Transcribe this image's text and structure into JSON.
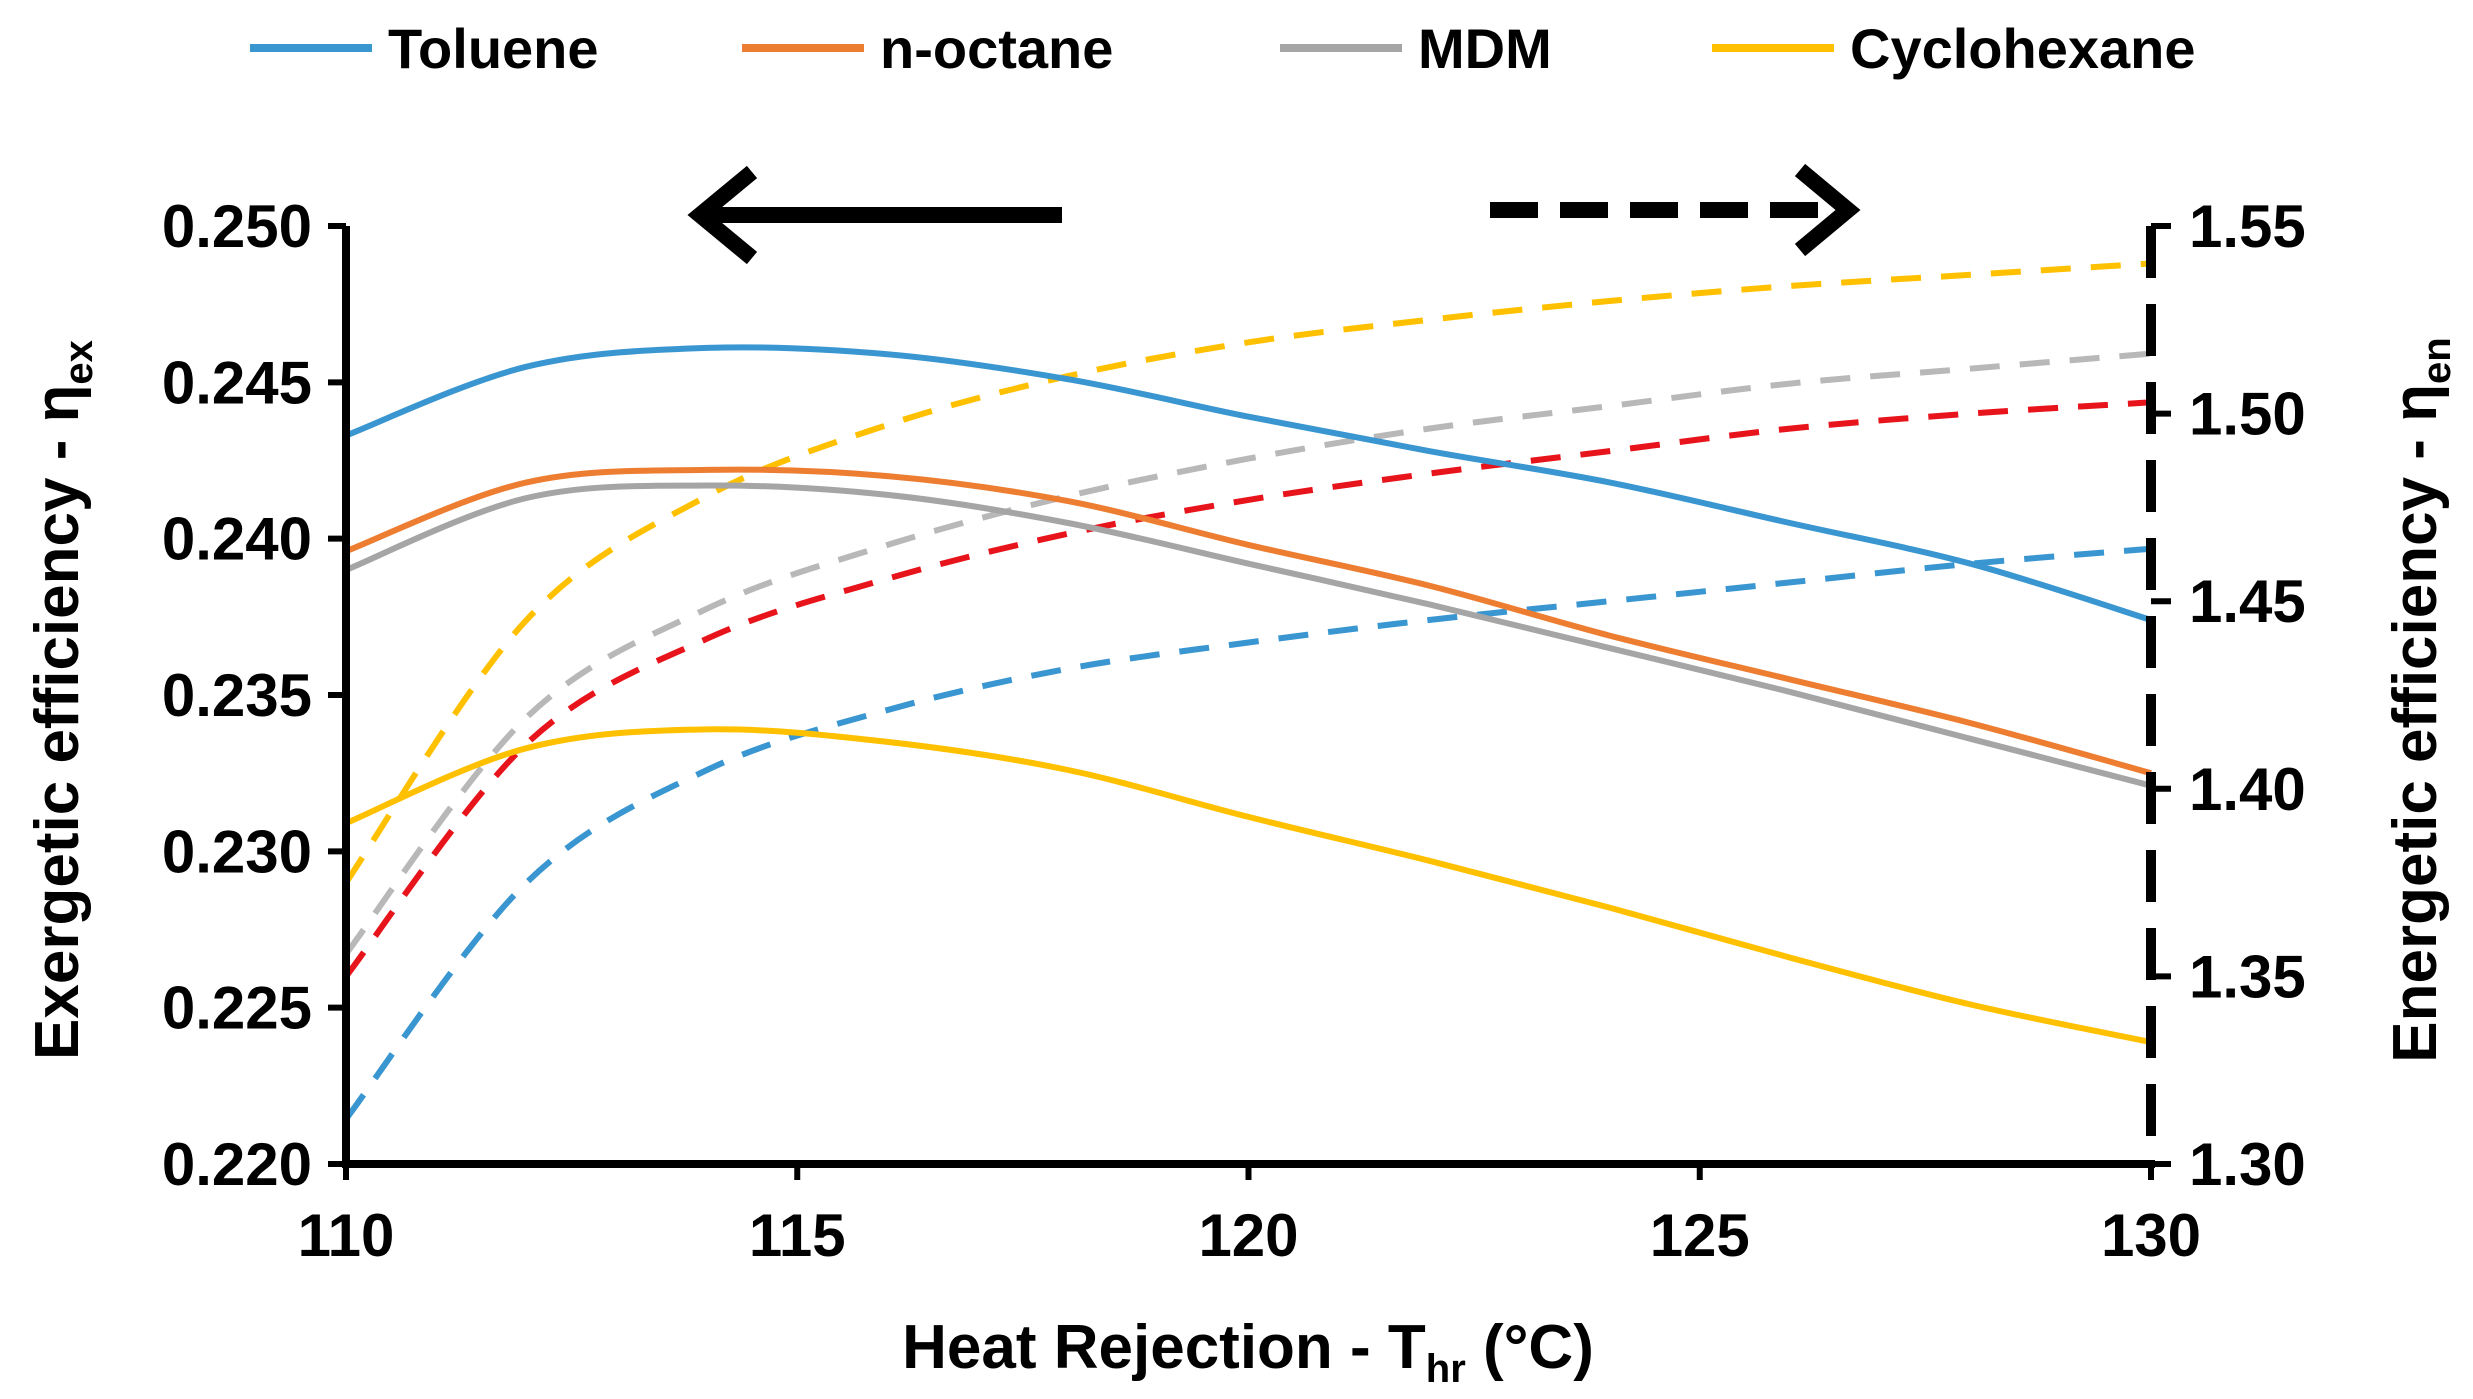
{
  "chart_data": {
    "type": "line",
    "title": "",
    "x": [
      110,
      112,
      114,
      116,
      118,
      120,
      122,
      124,
      126,
      128,
      130
    ],
    "xlabel": {
      "main": "Heat Rejection - T",
      "sub": "hr",
      "unit": "  (°C)"
    },
    "xlim": [
      110,
      130
    ],
    "xticks": [
      "110",
      "115",
      "120",
      "125",
      "130"
    ],
    "xtick_values": [
      110,
      115,
      120,
      125,
      130
    ],
    "y_left": {
      "label": {
        "main": "Exergetic efficiency - η",
        "sub": "ex"
      },
      "ylim": [
        0.22,
        0.25
      ],
      "ticks": [
        "0.220",
        "0.225",
        "0.230",
        "0.235",
        "0.240",
        "0.245",
        "0.250"
      ],
      "tick_values": [
        0.22,
        0.225,
        0.23,
        0.235,
        0.24,
        0.245,
        0.25
      ],
      "arrow": "left"
    },
    "y_right": {
      "label": {
        "main": "Energetic efficiency - η",
        "sub": "en"
      },
      "ylim": [
        1.3,
        1.55
      ],
      "ticks": [
        "1.30",
        "1.35",
        "1.40",
        "1.45",
        "1.50",
        "1.55"
      ],
      "tick_values": [
        1.3,
        1.35,
        1.4,
        1.45,
        1.5,
        1.55
      ],
      "arrow": "right"
    },
    "legend": {
      "position": "top",
      "entries": [
        "Toluene",
        "n-octane",
        "MDM",
        "Cyclohexane"
      ]
    },
    "grid": false,
    "series": [
      {
        "name": "Toluene",
        "axis": "left",
        "style": "solid",
        "color": "#3a96d0",
        "values": [
          0.2433,
          0.2455,
          0.2461,
          0.2459,
          0.2451,
          0.2439,
          0.2428,
          0.2418,
          0.2405,
          0.2392,
          0.2374
        ]
      },
      {
        "name": "n-octane",
        "axis": "left",
        "style": "solid",
        "color": "#ed7d31",
        "values": [
          0.2396,
          0.2418,
          0.2422,
          0.242,
          0.2412,
          0.2398,
          0.2385,
          0.2369,
          0.2355,
          0.2341,
          0.2325
        ]
      },
      {
        "name": "MDM",
        "axis": "left",
        "style": "solid",
        "color": "#a5a5a5",
        "values": [
          0.239,
          0.2413,
          0.2417,
          0.2414,
          0.2405,
          0.2392,
          0.2379,
          0.2365,
          0.2351,
          0.2336,
          0.2321
        ]
      },
      {
        "name": "Cyclohexane",
        "axis": "left",
        "style": "solid",
        "color": "#ffc000",
        "values": [
          0.2309,
          0.2333,
          0.2339,
          0.2335,
          0.2326,
          0.2311,
          0.2297,
          0.2282,
          0.2266,
          0.2251,
          0.2239
        ]
      },
      {
        "name": "Toluene",
        "axis": "right",
        "style": "dashed",
        "color": "#3a96d0",
        "values": [
          1.312,
          1.375,
          1.405,
          1.421,
          1.432,
          1.439,
          1.445,
          1.45,
          1.455,
          1.46,
          1.464
        ]
      },
      {
        "name": "n-octane",
        "axis": "right",
        "style": "dashed",
        "color": "#e8141c",
        "values": [
          1.35,
          1.412,
          1.44,
          1.456,
          1.468,
          1.477,
          1.484,
          1.49,
          1.496,
          1.5,
          1.503
        ]
      },
      {
        "name": "MDM",
        "axis": "right",
        "style": "dashed",
        "color": "#b8b8b8",
        "values": [
          1.356,
          1.419,
          1.448,
          1.465,
          1.478,
          1.488,
          1.496,
          1.502,
          1.508,
          1.512,
          1.516
        ]
      },
      {
        "name": "Cyclohexane",
        "axis": "right",
        "style": "dashed",
        "color": "#ffc000",
        "values": [
          1.375,
          1.445,
          1.478,
          1.497,
          1.51,
          1.519,
          1.525,
          1.53,
          1.534,
          1.537,
          1.54
        ]
      }
    ]
  }
}
